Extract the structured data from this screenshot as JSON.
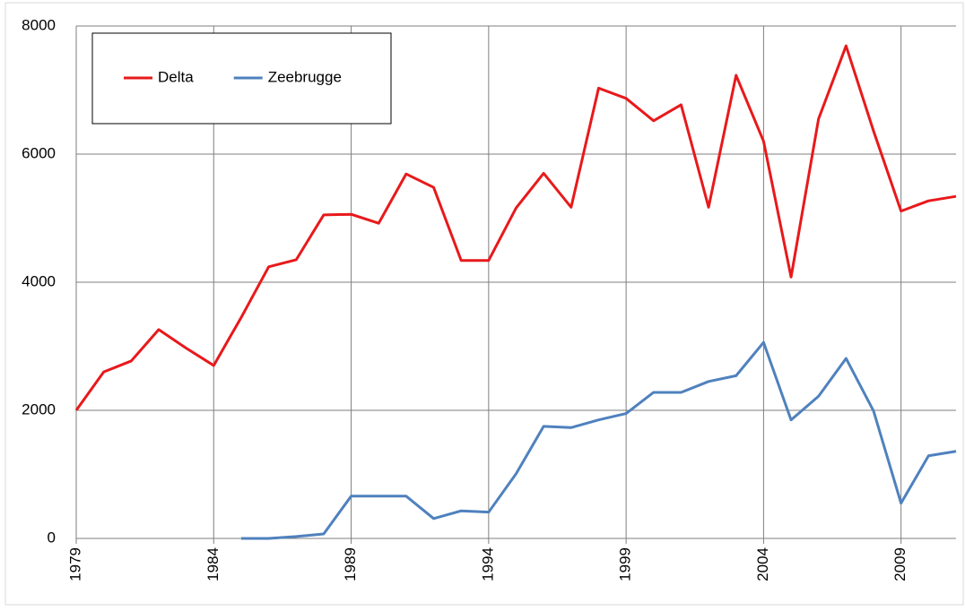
{
  "chart_data": {
    "type": "line",
    "x": [
      1979,
      1980,
      1981,
      1982,
      1983,
      1984,
      1985,
      1986,
      1987,
      1988,
      1989,
      1990,
      1991,
      1992,
      1993,
      1994,
      1995,
      1996,
      1997,
      1998,
      1999,
      2000,
      2001,
      2002,
      2003,
      2004,
      2005,
      2006,
      2007,
      2008,
      2009,
      2010,
      2011
    ],
    "series": [
      {
        "name": "Delta",
        "color": "#e8191b",
        "values": [
          2000,
          2600,
          2770,
          3260,
          2970,
          2700,
          3450,
          4240,
          4350,
          5050,
          5060,
          4920,
          5690,
          5480,
          4340,
          4340,
          5160,
          5700,
          5170,
          7030,
          6870,
          6520,
          6770,
          5170,
          7230,
          6200,
          4080,
          6550,
          7690,
          6360,
          5110,
          5270,
          5340
        ]
      },
      {
        "name": "Zeebrugge",
        "color": "#4f81bd",
        "values": [
          null,
          null,
          null,
          null,
          null,
          null,
          0,
          0,
          30,
          70,
          660,
          660,
          660,
          310,
          430,
          410,
          1010,
          1750,
          1730,
          1850,
          1950,
          2280,
          2280,
          2450,
          2540,
          3060,
          1850,
          2220,
          2810,
          1990,
          550,
          1290,
          1360
        ]
      }
    ],
    "xlim": [
      1979,
      2011
    ],
    "xticks": [
      1979,
      1984,
      1989,
      1994,
      1999,
      2004,
      2009
    ],
    "ylim": [
      0,
      8000
    ],
    "yticks": [
      0,
      2000,
      4000,
      6000,
      8000
    ],
    "grid": true,
    "legend": "top-left"
  }
}
